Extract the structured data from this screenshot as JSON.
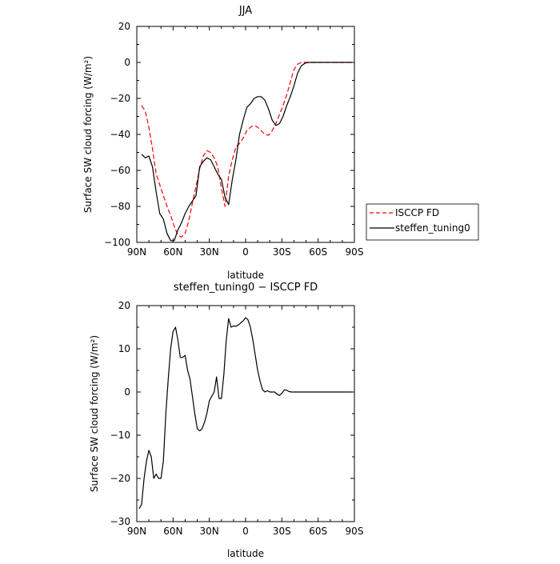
{
  "chart_data": [
    {
      "type": "line",
      "title": "JJA",
      "xlabel": "latitude",
      "ylabel": "Surface SW cloud forcing (W/m²)",
      "xlim": [
        90,
        -90
      ],
      "ylim": [
        -100,
        20
      ],
      "x_ticks": [
        90,
        60,
        30,
        0,
        -30,
        -60,
        -90
      ],
      "x_tick_labels": [
        "90N",
        "60N",
        "30N",
        "0",
        "30S",
        "60S",
        "90S"
      ],
      "y_ticks": [
        -100,
        -80,
        -60,
        -40,
        -20,
        0,
        20
      ],
      "y_tick_labels": [
        "−100",
        "−80",
        "−60",
        "−40",
        "−20",
        "0",
        "20"
      ],
      "grid": false,
      "legend": "right-outside",
      "series": [
        {
          "name": "ISCCP FD",
          "color": "#ff0000",
          "dash": "dashed",
          "x": [
            86,
            83,
            80,
            77,
            74,
            71,
            68,
            65,
            62,
            59,
            56,
            53,
            50,
            47,
            44,
            41,
            38,
            35,
            32,
            29,
            26,
            23,
            20,
            17,
            14,
            11,
            8,
            5,
            2,
            -1,
            -4,
            -7,
            -10,
            -13,
            -16,
            -19,
            -22,
            -25,
            -28,
            -31,
            -34,
            -37,
            -40,
            -43,
            -46,
            -49,
            -52,
            -55,
            -58,
            -61,
            -64,
            -67,
            -70,
            -73,
            -76,
            -79,
            -82,
            -85,
            -88
          ],
          "y": [
            -24,
            -27,
            -36,
            -48,
            -62,
            -68,
            -74,
            -80,
            -85,
            -91,
            -96,
            -97,
            -95,
            -88,
            -78,
            -69,
            -59,
            -52,
            -49,
            -50,
            -53,
            -58,
            -70,
            -80,
            -63,
            -54,
            -47,
            -45,
            -42,
            -38,
            -36,
            -35,
            -36,
            -38,
            -40,
            -40.5,
            -38,
            -34,
            -29,
            -24,
            -18,
            -11,
            -4,
            -1,
            0,
            0,
            0,
            0,
            0,
            0,
            0,
            0,
            0,
            0,
            0,
            0,
            0,
            0,
            0
          ]
        },
        {
          "name": "steffen_tuning0",
          "color": "#000000",
          "dash": "solid",
          "x": [
            86,
            83,
            80,
            77,
            74,
            71,
            68,
            65,
            62,
            59,
            56,
            53,
            50,
            47,
            44,
            41,
            38,
            35,
            32,
            29,
            26,
            23,
            20,
            17,
            14,
            11,
            8,
            5,
            2,
            -1,
            -4,
            -7,
            -10,
            -13,
            -16,
            -19,
            -22,
            -25,
            -28,
            -31,
            -34,
            -37,
            -40,
            -43,
            -46,
            -49,
            -52,
            -55,
            -58,
            -61,
            -64,
            -67,
            -70,
            -73,
            -76,
            -79,
            -82,
            -85,
            -88
          ],
          "y": [
            -51,
            -53,
            -52,
            -58,
            -72,
            -84,
            -87,
            -95,
            -99,
            -99,
            -93,
            -89,
            -84,
            -80,
            -77,
            -74,
            -58,
            -55,
            -53,
            -54,
            -58,
            -62,
            -65,
            -75,
            -79,
            -65,
            -54,
            -40,
            -32,
            -25,
            -23,
            -20,
            -19,
            -19,
            -21,
            -26,
            -32,
            -35,
            -34,
            -30,
            -24,
            -19,
            -13,
            -6,
            -2,
            -0.5,
            0,
            0,
            0,
            0,
            0,
            0,
            0,
            0,
            0,
            0,
            0,
            0,
            0
          ]
        }
      ]
    },
    {
      "type": "line",
      "title": "steffen_tuning0 − ISCCP FD",
      "xlabel": "latitude",
      "ylabel": "Surface SW cloud forcing (W/m²)",
      "xlim": [
        90,
        -90
      ],
      "ylim": [
        -30,
        20
      ],
      "x_ticks": [
        90,
        60,
        30,
        0,
        -30,
        -60,
        -90
      ],
      "x_tick_labels": [
        "90N",
        "60N",
        "30N",
        "0",
        "30S",
        "60S",
        "90S"
      ],
      "y_ticks": [
        -30,
        -20,
        -10,
        0,
        10,
        20
      ],
      "y_tick_labels": [
        "−30",
        "−20",
        "−10",
        "0",
        "10",
        "20"
      ],
      "grid": false,
      "series": [
        {
          "color": "#000000",
          "dash": "solid",
          "x": [
            88,
            86,
            84,
            82,
            80,
            78,
            76,
            74,
            72,
            70,
            68,
            66,
            64,
            62,
            60,
            58,
            56,
            54,
            52,
            50,
            48,
            46,
            44,
            42,
            40,
            38,
            36,
            34,
            32,
            30,
            28,
            26,
            24,
            22,
            20,
            18,
            16,
            14,
            12,
            10,
            8,
            6,
            4,
            2,
            0,
            -2,
            -4,
            -6,
            -8,
            -10,
            -12,
            -14,
            -16,
            -18,
            -20,
            -22,
            -24,
            -26,
            -28,
            -30,
            -32,
            -34,
            -36,
            -38,
            -40,
            -42,
            -44,
            -46,
            -48,
            -50,
            -52,
            -55,
            -58,
            -61,
            -64,
            -67,
            -70,
            -73,
            -76,
            -80,
            -84,
            -88
          ],
          "y": [
            -27,
            -26,
            -20,
            -16,
            -13.5,
            -15,
            -20,
            -19,
            -20,
            -20,
            -16,
            -5,
            3,
            10,
            14,
            15,
            12,
            8,
            8,
            8.5,
            5,
            3,
            -1,
            -5,
            -8.5,
            -9,
            -8.5,
            -7,
            -5,
            -2,
            -1,
            0,
            3.5,
            -1.5,
            -1.5,
            4,
            12,
            17,
            15,
            15.3,
            15.2,
            15.5,
            16,
            16.5,
            17.2,
            16.7,
            15,
            12,
            8.5,
            5,
            2.5,
            0.5,
            0,
            0.3,
            0,
            0,
            0,
            -0.5,
            -0.8,
            -0.3,
            0.5,
            0.4,
            0.1,
            0,
            0,
            0,
            0,
            0,
            0,
            0,
            0,
            0,
            0,
            0,
            0,
            0,
            0,
            0,
            0,
            0,
            0,
            0
          ]
        }
      ]
    }
  ]
}
